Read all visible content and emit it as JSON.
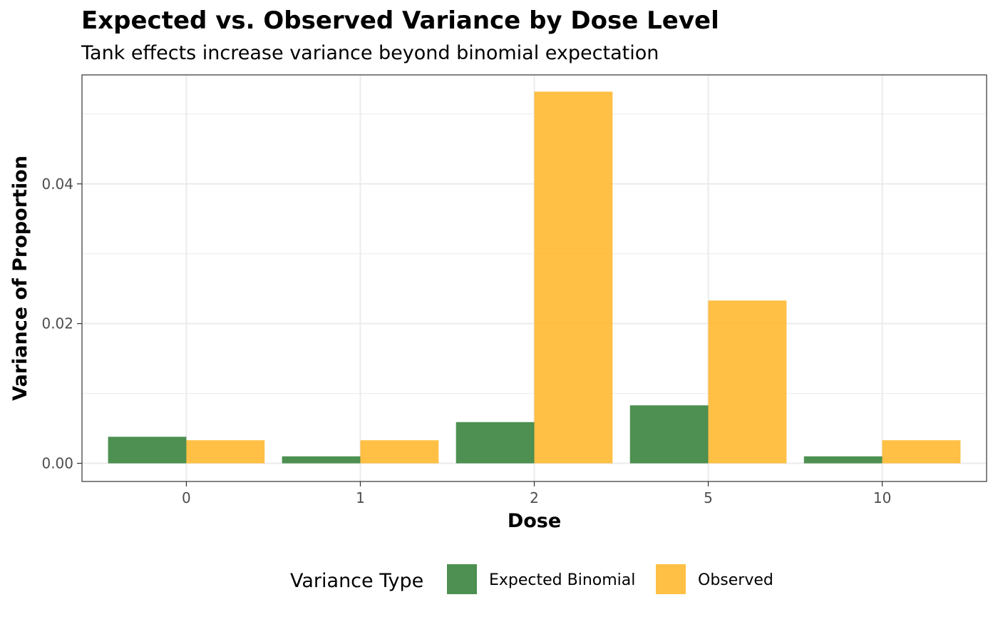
{
  "chart_data": {
    "type": "bar",
    "title": "Expected vs. Observed Variance by Dose Level",
    "subtitle": "Tank effects increase variance beyond binomial expectation",
    "xlabel": "Dose",
    "ylabel": "Variance of Proportion",
    "categories": [
      "0",
      "1",
      "2",
      "5",
      "10"
    ],
    "series": [
      {
        "name": "Expected Binomial",
        "color": "#2e7d32",
        "values": [
          0.0038,
          0.001,
          0.0059,
          0.0083,
          0.001
        ]
      },
      {
        "name": "Observed",
        "color": "#ffb524",
        "values": [
          0.0033,
          0.0033,
          0.0532,
          0.0233,
          0.0033
        ]
      }
    ],
    "ylim": [
      -0.0026,
      0.0556
    ],
    "yticks": [
      0.0,
      0.02,
      0.04
    ],
    "ytick_labels": [
      "0.00",
      "0.02",
      "0.04"
    ],
    "grid": true,
    "legend": {
      "title": "Variance Type",
      "position": "bottom"
    }
  }
}
